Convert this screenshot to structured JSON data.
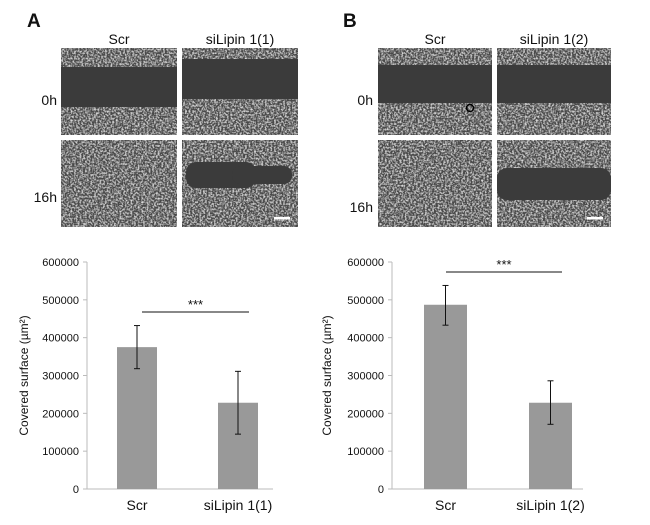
{
  "panels": [
    {
      "letter": "A",
      "columns": [
        "Scr",
        "siLipin 1(1)"
      ],
      "rows": [
        "0h",
        "16h"
      ]
    },
    {
      "letter": "B",
      "columns": [
        "Scr",
        "siLipin 1(2)"
      ],
      "rows": [
        "0h",
        "16h"
      ]
    }
  ],
  "chart_data": [
    {
      "type": "bar",
      "categories": [
        "Scr",
        "siLipin 1(1)"
      ],
      "values": [
        375000,
        228000
      ],
      "error_upper": [
        432000,
        311000
      ],
      "error_lower": [
        318000,
        145000
      ],
      "ylabel": "Covered  surface (µm²)",
      "ylim": [
        0,
        600000
      ],
      "yticks": [
        "0",
        "100000",
        "200000",
        "300000",
        "400000",
        "500000",
        "600000"
      ],
      "significance": "***",
      "bar_color": "#999999",
      "grid": false
    },
    {
      "type": "bar",
      "categories": [
        "Scr",
        "siLipin 1(2)"
      ],
      "values": [
        487000,
        228000
      ],
      "error_upper": [
        538000,
        286000
      ],
      "error_lower": [
        433000,
        171000
      ],
      "ylabel": "Covered surface (µm²)",
      "ylim": [
        0,
        600000
      ],
      "yticks": [
        "0",
        "100000",
        "200000",
        "300000",
        "400000",
        "500000",
        "600000"
      ],
      "significance": "***",
      "bar_color": "#999999",
      "grid": false
    }
  ]
}
